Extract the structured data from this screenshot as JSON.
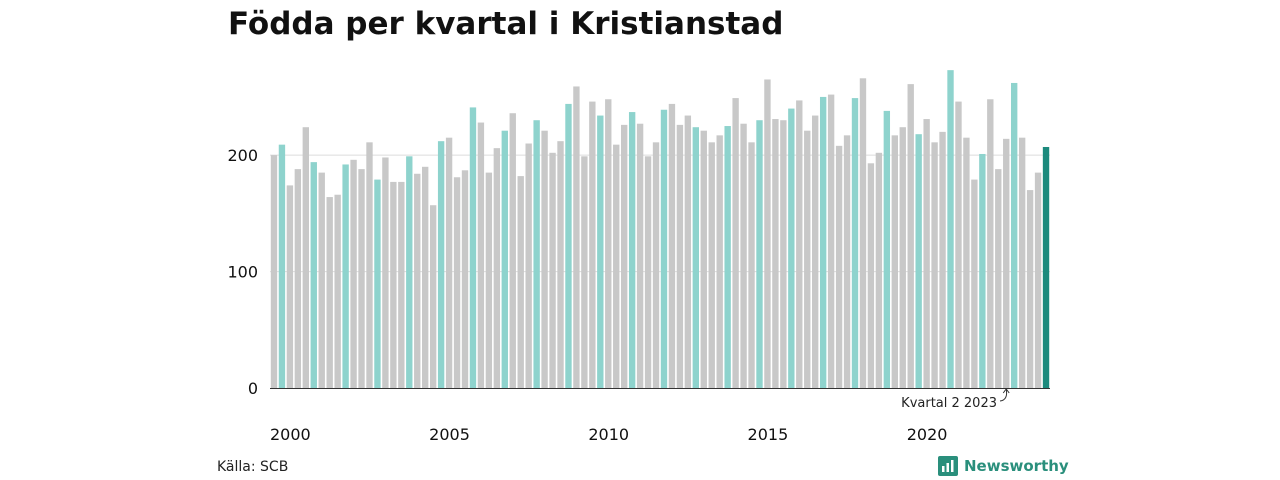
{
  "chart_data": {
    "type": "bar",
    "title": "Födda per kvartal i Kristianstad",
    "start_year": 2000,
    "x_tick_labels": [
      "2000",
      "2005",
      "2010",
      "2015",
      "2020"
    ],
    "y_tick_labels": [
      "0",
      "100",
      "200"
    ],
    "ylim": [
      0,
      280
    ],
    "grid": true,
    "colors": {
      "default": "#c8c8c8",
      "q2": "#8ed3cd",
      "latest": "#1c8a7d"
    },
    "annotation": "Kvartal 2 2023",
    "values": [
      200,
      209,
      174,
      188,
      224,
      194,
      185,
      164,
      166,
      192,
      196,
      188,
      211,
      179,
      198,
      177,
      177,
      199,
      184,
      190,
      157,
      212,
      215,
      181,
      187,
      241,
      228,
      185,
      206,
      221,
      236,
      182,
      210,
      230,
      221,
      202,
      212,
      244,
      259,
      199,
      246,
      234,
      248,
      209,
      226,
      237,
      227,
      199,
      211,
      239,
      244,
      226,
      234,
      224,
      221,
      211,
      217,
      225,
      249,
      227,
      211,
      230,
      265,
      231,
      230,
      240,
      247,
      221,
      234,
      250,
      252,
      208,
      217,
      249,
      266,
      193,
      202,
      238,
      217,
      224,
      261,
      218,
      231,
      211,
      220,
      273,
      246,
      215,
      179,
      201,
      248,
      188,
      214,
      262,
      215,
      170,
      185,
      207
    ]
  },
  "footer": {
    "source": "Källa: SCB",
    "brand": "Newsworthy"
  }
}
